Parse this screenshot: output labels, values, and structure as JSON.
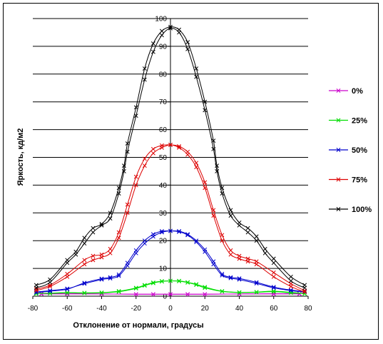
{
  "chart_data": {
    "type": "line",
    "title": "",
    "xlabel": "Отклонение от нормали, градусы",
    "ylabel": "Яркость, кд/м2",
    "xlim": [
      -80,
      80
    ],
    "ylim": [
      0,
      100
    ],
    "xticks": [
      -80,
      -60,
      -40,
      -20,
      0,
      20,
      40,
      60,
      80
    ],
    "yticks": [
      0,
      10,
      20,
      30,
      40,
      50,
      60,
      70,
      80,
      90,
      100
    ],
    "grid": "horizontal",
    "legend_position": "right",
    "series": [
      {
        "name": "0%",
        "color": "#cc00cc",
        "x": [
          -75,
          -60,
          -40,
          -20,
          -10,
          0,
          10,
          20,
          40,
          60,
          75
        ],
        "forward": [
          0.8,
          0.8,
          0.8,
          0.7,
          0.7,
          0.7,
          0.7,
          0.7,
          0.8,
          0.8,
          0.8
        ],
        "backward": [
          0.9,
          0.9,
          0.8,
          0.7,
          0.7,
          0.7,
          0.7,
          0.7,
          0.8,
          0.9,
          0.9
        ]
      },
      {
        "name": "25%",
        "color": "#00dd00",
        "x": [
          -78,
          -70,
          -60,
          -50,
          -40,
          -30,
          -20,
          -15,
          -10,
          -5,
          0,
          5,
          10,
          15,
          20,
          30,
          40,
          50,
          60,
          70,
          78
        ],
        "forward": [
          1.0,
          1.0,
          1.2,
          1.1,
          1.2,
          1.6,
          2.8,
          3.8,
          4.7,
          5.3,
          5.5,
          5.4,
          4.9,
          4.1,
          3.0,
          1.7,
          1.3,
          1.4,
          1.6,
          1.2,
          0.9
        ],
        "backward": [
          0.9,
          1.1,
          1.3,
          1.2,
          1.3,
          1.8,
          3.0,
          4.0,
          4.9,
          5.4,
          5.5,
          5.5,
          5.0,
          4.3,
          3.3,
          1.8,
          1.4,
          1.5,
          1.8,
          1.4,
          1.0
        ]
      },
      {
        "name": "50%",
        "color": "#0000cc",
        "x": [
          -78,
          -70,
          -60,
          -50,
          -40,
          -35,
          -30,
          -25,
          -20,
          -15,
          -10,
          -5,
          0,
          5,
          10,
          15,
          20,
          25,
          30,
          35,
          40,
          50,
          60,
          70,
          78
        ],
        "forward": [
          1.5,
          2.0,
          2.7,
          4.5,
          6.0,
          6.4,
          7.3,
          11.0,
          15.5,
          19.0,
          21.5,
          23.0,
          23.5,
          23.2,
          22.0,
          19.5,
          16.0,
          11.5,
          7.5,
          6.5,
          6.0,
          4.6,
          3.0,
          2.0,
          1.5
        ],
        "backward": [
          1.3,
          1.8,
          2.5,
          4.8,
          6.3,
          6.8,
          7.8,
          12.0,
          16.5,
          20.0,
          22.3,
          23.4,
          23.5,
          23.4,
          22.3,
          20.0,
          16.8,
          12.5,
          8.0,
          6.8,
          6.4,
          5.0,
          3.3,
          2.2,
          1.7
        ]
      },
      {
        "name": "75%",
        "color": "#dd0000",
        "x": [
          -78,
          -70,
          -60,
          -50,
          -45,
          -40,
          -35,
          -30,
          -25,
          -20,
          -15,
          -10,
          -5,
          0,
          5,
          10,
          15,
          20,
          25,
          30,
          35,
          40,
          45,
          50,
          60,
          70,
          78
        ],
        "forward": [
          2.0,
          3.5,
          7.0,
          11.5,
          13.0,
          14.0,
          15.5,
          21.0,
          30.0,
          40.0,
          47.0,
          51.5,
          53.5,
          54.5,
          53.5,
          51.0,
          46.5,
          39.0,
          29.0,
          20.0,
          15.0,
          13.5,
          12.5,
          11.5,
          7.0,
          3.5,
          1.5
        ],
        "backward": [
          2.5,
          4.0,
          8.0,
          13.0,
          14.5,
          15.0,
          17.0,
          23.0,
          33.0,
          43.0,
          49.5,
          53.0,
          54.3,
          54.5,
          54.0,
          52.0,
          48.0,
          41.0,
          31.0,
          22.0,
          16.5,
          14.5,
          13.5,
          12.5,
          8.5,
          4.5,
          2.0
        ]
      },
      {
        "name": "100%",
        "color": "#000000",
        "x": [
          -78,
          -70,
          -60,
          -55,
          -50,
          -45,
          -40,
          -35,
          -30,
          -27,
          -25,
          -20,
          -15,
          -10,
          -5,
          0,
          5,
          10,
          15,
          20,
          25,
          27,
          30,
          35,
          40,
          45,
          50,
          55,
          60,
          70,
          78
        ],
        "forward": [
          3.0,
          5.0,
          12.0,
          15.0,
          19.0,
          23.0,
          25.5,
          28.0,
          37.0,
          45.0,
          52.0,
          65.0,
          78.0,
          88.0,
          94.0,
          96.5,
          95.0,
          89.0,
          79.0,
          67.0,
          53.0,
          45.0,
          37.0,
          29.0,
          25.5,
          23.0,
          20.0,
          15.5,
          12.0,
          5.5,
          3.0
        ],
        "backward": [
          4.0,
          6.0,
          13.0,
          16.0,
          21.0,
          24.5,
          26.0,
          30.0,
          39.0,
          47.0,
          55.0,
          68.0,
          82.0,
          91.0,
          95.5,
          97.0,
          96.0,
          91.5,
          82.0,
          70.0,
          56.0,
          47.0,
          39.0,
          31.0,
          26.5,
          24.5,
          21.5,
          17.0,
          13.5,
          7.0,
          4.0
        ]
      }
    ]
  }
}
